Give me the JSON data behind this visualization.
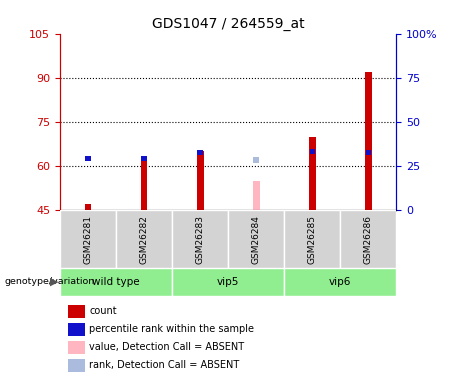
{
  "title": "GDS1047 / 264559_at",
  "samples": [
    "GSM26281",
    "GSM26282",
    "GSM26283",
    "GSM26284",
    "GSM26285",
    "GSM26286"
  ],
  "ylim_left": [
    45,
    105
  ],
  "yticks_left": [
    45,
    60,
    75,
    90,
    105
  ],
  "yticks_right_vals": [
    0,
    25,
    50,
    75,
    100
  ],
  "yticks_right_labels": [
    "0",
    "25",
    "50",
    "75",
    "100%"
  ],
  "bar_bottom": 45,
  "red_top": [
    47.0,
    62.0,
    65.0,
    null,
    70.0,
    92.0
  ],
  "red_absent_top": [
    null,
    null,
    null,
    55.0,
    null,
    null
  ],
  "blue_top": [
    62.5,
    62.5,
    64.5,
    null,
    65.0,
    64.5
  ],
  "blue_absent_top": [
    null,
    null,
    null,
    62.0,
    null,
    null
  ],
  "red_color": "#CC0000",
  "red_absent_color": "#FFB6C1",
  "blue_color": "#1111CC",
  "blue_absent_color": "#AABBDD",
  "red_bar_width": 0.12,
  "blue_bar_width": 0.1,
  "blue_bar_height": 1.8,
  "sample_bg_color": "#D3D3D3",
  "group_bg_color": "#90EE90",
  "dotted_yticks": [
    60,
    75,
    90
  ],
  "left_axis_color": "#CC0000",
  "right_axis_color": "#0000CC",
  "legend_items": [
    {
      "label": "count",
      "color": "#CC0000"
    },
    {
      "label": "percentile rank within the sample",
      "color": "#1111CC"
    },
    {
      "label": "value, Detection Call = ABSENT",
      "color": "#FFB6C1"
    },
    {
      "label": "rank, Detection Call = ABSENT",
      "color": "#AABBDD"
    }
  ],
  "groups_info": [
    {
      "name": "wild type",
      "start": 0,
      "end": 1
    },
    {
      "name": "vip5",
      "start": 2,
      "end": 3
    },
    {
      "name": "vip6",
      "start": 4,
      "end": 5
    }
  ]
}
